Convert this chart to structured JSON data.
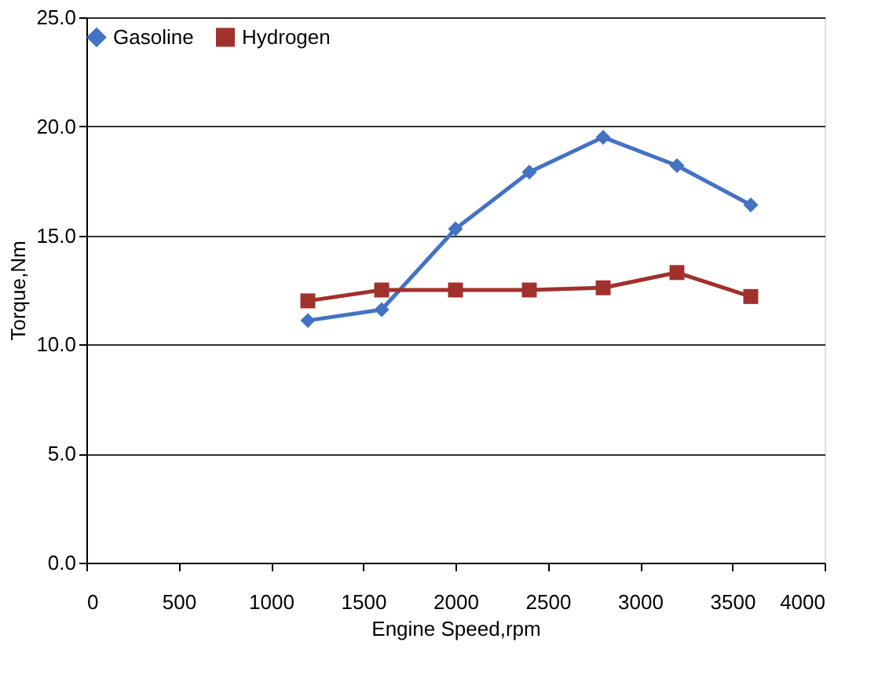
{
  "chart_data": {
    "type": "line",
    "xlabel": "Engine Speed,rpm",
    "ylabel": "Torque,Nm",
    "x": [
      1200,
      1600,
      2000,
      2400,
      2800,
      3200,
      3600
    ],
    "series": [
      {
        "name": "Gasoline",
        "color": "#4472c4",
        "marker": "diamond",
        "values": [
          11.1,
          11.6,
          15.3,
          17.9,
          19.5,
          18.2,
          16.4
        ]
      },
      {
        "name": "Hydrogen",
        "color": "#a0312c",
        "marker": "square",
        "values": [
          12.0,
          12.5,
          12.5,
          12.5,
          12.6,
          13.3,
          12.2
        ]
      }
    ],
    "xlim": [
      0,
      4000
    ],
    "xticks": [
      0,
      500,
      1000,
      1500,
      2000,
      2500,
      3000,
      3500,
      4000
    ],
    "ylim": [
      0,
      25
    ],
    "yticks": [
      {
        "value": 0,
        "label": "0.0"
      },
      {
        "value": 5,
        "label": "5.0"
      },
      {
        "value": 10,
        "label": "10.0"
      },
      {
        "value": 15,
        "label": "15.0"
      },
      {
        "value": 20,
        "label": "20.0"
      },
      {
        "value": 25,
        "label": "25.0"
      }
    ],
    "grid": "y",
    "legend": "top"
  }
}
